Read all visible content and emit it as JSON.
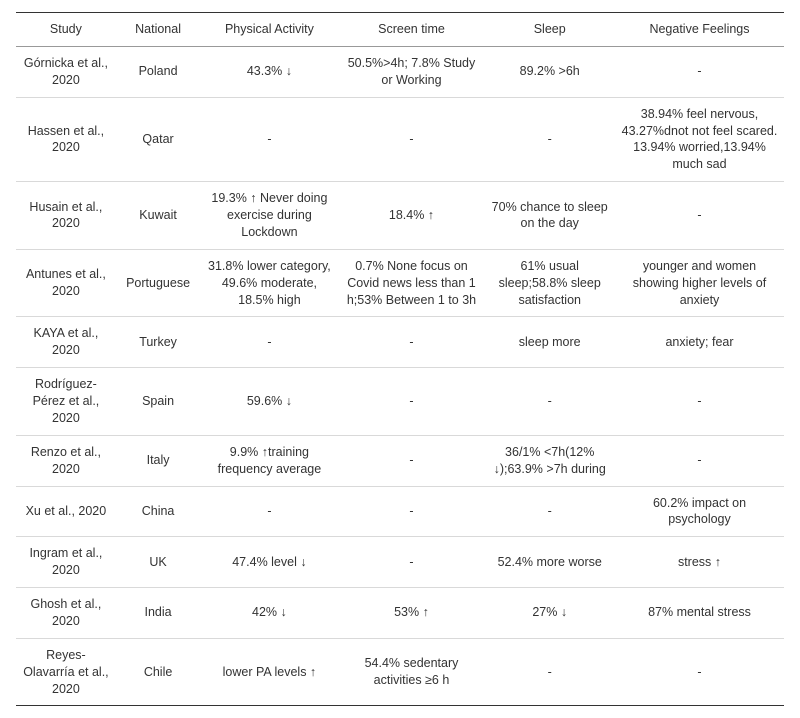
{
  "columns": [
    "Study",
    "National",
    "Physical Activity",
    "Screen time",
    "Sleep",
    "Negative Feelings"
  ],
  "rows": [
    {
      "study": "Górnicka et al., 2020",
      "national": "Poland",
      "pa": "43.3% ↓",
      "screen": "50.5%>4h; 7.8% Study or Working",
      "sleep": "89.2% >6h",
      "neg": "-"
    },
    {
      "study": "Hassen et al., 2020",
      "national": "Qatar",
      "pa": "-",
      "screen": "-",
      "sleep": "-",
      "neg": "38.94% feel nervous, 43.27%dnot not feel scared. 13.94% worried,13.94% much sad"
    },
    {
      "study": "Husain et al., 2020",
      "national": "Kuwait",
      "pa": "19.3% ↑ Never doing exercise during Lockdown",
      "screen": "18.4%  ↑",
      "sleep": "70% chance to sleep on the day",
      "neg": "-"
    },
    {
      "study": "Antunes et al., 2020",
      "national": "Portuguese",
      "pa": "31.8% lower category, 49.6% moderate, 18.5% high",
      "screen": "0.7% None focus on Covid news less than 1 h;53% Between 1 to 3h",
      "sleep": "61% usual sleep;58.8% sleep satisfaction",
      "neg": "younger and women showing higher levels of anxiety"
    },
    {
      "study": "KAYA et al., 2020",
      "national": "Turkey",
      "pa": "-",
      "screen": "-",
      "sleep": "sleep more",
      "neg": "anxiety; fear"
    },
    {
      "study": "Rodríguez-Pérez et al., 2020",
      "national": "Spain",
      "pa": "59.6% ↓",
      "screen": "-",
      "sleep": "-",
      "neg": "-"
    },
    {
      "study": "Renzo et al., 2020",
      "national": "Italy",
      "pa": "9.9% ↑training frequency average",
      "screen": "-",
      "sleep": "36/1% <7h(12% ↓);63.9% >7h during",
      "neg": "-"
    },
    {
      "study": "Xu et al., 2020",
      "national": "China",
      "pa": "-",
      "screen": "-",
      "sleep": "-",
      "neg": "60.2% impact on psychology"
    },
    {
      "study": "Ingram et al., 2020",
      "national": "UK",
      "pa": "47.4%  level ↓",
      "screen": "-",
      "sleep": "52.4% more worse",
      "neg": "stress ↑"
    },
    {
      "study": "Ghosh et al., 2020",
      "national": "India",
      "pa": "42% ↓",
      "screen": "53% ↑",
      "sleep": "27% ↓",
      "neg": "87% mental stress"
    },
    {
      "study": "Reyes-Olavarría et al., 2020",
      "national": "Chile",
      "pa": "lower PA levels ↑",
      "screen": "54.4% sedentary activities ≥6 h",
      "sleep": "-",
      "neg": "-"
    }
  ]
}
